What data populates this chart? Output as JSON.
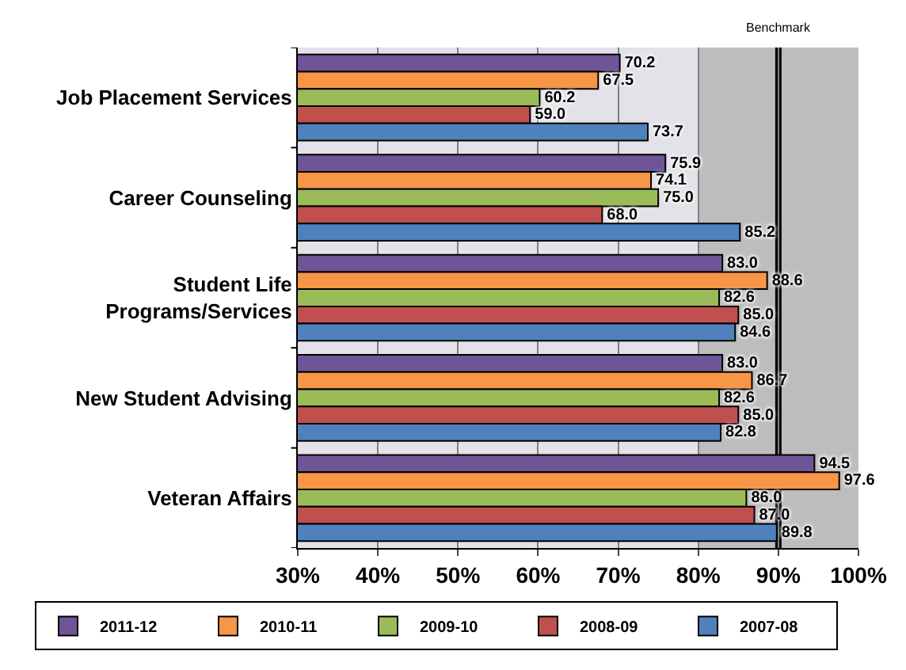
{
  "chart_data": {
    "type": "bar",
    "orientation": "horizontal",
    "categories": [
      "Job Placement Services",
      "Career Counseling",
      "Student Life\nPrograms/Services",
      "New Student Advising",
      "Veteran Affairs"
    ],
    "series": [
      {
        "name": "2011-12",
        "color": "#6f5597",
        "values": [
          70.2,
          75.9,
          83.0,
          83.0,
          94.5
        ],
        "value_labels": [
          "70.2",
          "75.9",
          "83.0",
          "83.0",
          "94.5"
        ]
      },
      {
        "name": "2010-11",
        "color": "#f79646",
        "values": [
          67.5,
          74.1,
          88.6,
          86.7,
          97.6
        ],
        "value_labels": [
          "67.5",
          "74.1",
          "88.6",
          "86.7",
          "97.6"
        ]
      },
      {
        "name": "2009-10",
        "color": "#9bbb59",
        "values": [
          60.2,
          75.0,
          82.6,
          82.6,
          86.0
        ],
        "value_labels": [
          "60.2",
          "75.0",
          "82.6",
          "82.6",
          "86.0"
        ]
      },
      {
        "name": "2008-09",
        "color": "#c0504d",
        "values": [
          59.0,
          68.0,
          85.0,
          85.0,
          87.0
        ],
        "value_labels": [
          "59.0",
          "68.0",
          "85.0",
          "85.0",
          "87.0"
        ]
      },
      {
        "name": "2007-08",
        "color": "#4f81bd",
        "values": [
          73.7,
          85.2,
          84.6,
          82.8,
          89.8
        ],
        "value_labels": [
          "73.7",
          "85.2",
          "84.6",
          "82.8",
          "89.8"
        ]
      }
    ],
    "xlim": [
      30,
      100
    ],
    "xticks": [
      {
        "value": 30,
        "label": "30%"
      },
      {
        "value": 40,
        "label": "40%"
      },
      {
        "value": 50,
        "label": "50%"
      },
      {
        "value": 60,
        "label": "60%"
      },
      {
        "value": 70,
        "label": "70%"
      },
      {
        "value": 80,
        "label": "80%"
      },
      {
        "value": 90,
        "label": "90%"
      },
      {
        "value": 100,
        "label": "100%"
      }
    ],
    "grid": "x",
    "legend": "bottom",
    "bands": [
      {
        "axis": "x",
        "from": 80,
        "to": 100,
        "color": "#bdbdbd"
      }
    ],
    "ref_lines": [
      {
        "axis": "x",
        "value": 90,
        "label": "Benchmark",
        "color": "#000000"
      }
    ]
  }
}
